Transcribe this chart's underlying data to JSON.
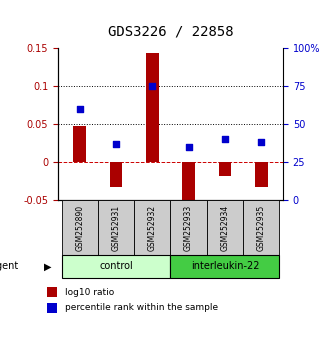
{
  "title": "GDS3226 / 22858",
  "samples": [
    "GSM252890",
    "GSM252931",
    "GSM252932",
    "GSM252933",
    "GSM252934",
    "GSM252935"
  ],
  "log10_ratio": [
    0.047,
    -0.033,
    0.143,
    -0.065,
    -0.018,
    -0.033
  ],
  "percentile_rank": [
    60,
    37,
    75,
    35,
    40,
    38
  ],
  "ylim_left": [
    -0.05,
    0.15
  ],
  "ylim_right": [
    0,
    100
  ],
  "yticks_left": [
    -0.05,
    0,
    0.05,
    0.1,
    0.15
  ],
  "ytick_labels_left": [
    "-0.05",
    "0",
    "0.05",
    "0.1",
    "0.15"
  ],
  "yticks_right": [
    0,
    25,
    50,
    75,
    100
  ],
  "ytick_labels_right": [
    "0",
    "25",
    "50",
    "75",
    "100%"
  ],
  "groups": [
    {
      "label": "control",
      "indices": [
        0,
        1,
        2
      ],
      "color": "#ccffcc"
    },
    {
      "label": "interleukin-22",
      "indices": [
        3,
        4,
        5
      ],
      "color": "#44cc44"
    }
  ],
  "bar_color": "#aa0000",
  "square_color": "#0000cc",
  "hline_zero_color": "#cc0000",
  "hline_dotted_color": "#000000",
  "title_fontsize": 10,
  "tick_fontsize": 7,
  "sample_fontsize": 5.5,
  "group_fontsize": 7,
  "legend_fontsize": 6.5,
  "agent_label": "agent",
  "legend_bar": "log10 ratio",
  "legend_square": "percentile rank within the sample"
}
